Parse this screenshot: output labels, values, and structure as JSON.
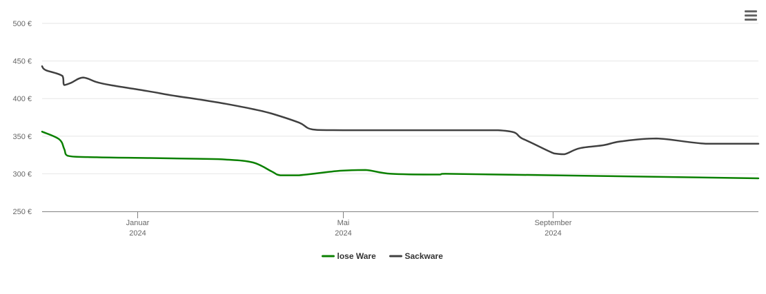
{
  "chart_data": {
    "type": "line",
    "title": "",
    "xlabel": "",
    "ylabel": "",
    "x_range": [
      "2023-11-06",
      "2024-12-31"
    ],
    "ylim": [
      250,
      500
    ],
    "y_ticks": [
      250,
      300,
      350,
      400,
      450,
      500
    ],
    "y_tick_labels": [
      "250 €",
      "300 €",
      "350 €",
      "400 €",
      "450 €",
      "500 €"
    ],
    "x_ticks": [
      {
        "date": "2024-01-01",
        "month": "Januar",
        "year": "2024"
      },
      {
        "date": "2024-05-01",
        "month": "Mai",
        "year": "2024"
      },
      {
        "date": "2024-09-01",
        "month": "September",
        "year": "2024"
      }
    ],
    "grid": "horizontal",
    "legend_position": "bottom-center",
    "series": [
      {
        "name": "lose Ware",
        "color": "#0a8000",
        "points": [
          {
            "x": "2023-11-06",
            "y": 356
          },
          {
            "x": "2023-11-16",
            "y": 346
          },
          {
            "x": "2023-11-19",
            "y": 333
          },
          {
            "x": "2023-11-21",
            "y": 324
          },
          {
            "x": "2023-12-08",
            "y": 322
          },
          {
            "x": "2024-01-07",
            "y": 321
          },
          {
            "x": "2024-02-06",
            "y": 320
          },
          {
            "x": "2024-02-22",
            "y": 319
          },
          {
            "x": "2024-03-09",
            "y": 315
          },
          {
            "x": "2024-03-20",
            "y": 303
          },
          {
            "x": "2024-03-25",
            "y": 298
          },
          {
            "x": "2024-04-05",
            "y": 298
          },
          {
            "x": "2024-04-29",
            "y": 304
          },
          {
            "x": "2024-05-14",
            "y": 305
          },
          {
            "x": "2024-05-29",
            "y": 300
          },
          {
            "x": "2024-06-25",
            "y": 299
          },
          {
            "x": "2024-06-30",
            "y": 300
          },
          {
            "x": "2024-12-31",
            "y": 294
          }
        ]
      },
      {
        "name": "Sackware",
        "color": "#404040",
        "points": [
          {
            "x": "2023-11-06",
            "y": 443
          },
          {
            "x": "2023-11-08",
            "y": 438
          },
          {
            "x": "2023-11-18",
            "y": 430
          },
          {
            "x": "2023-11-19",
            "y": 418
          },
          {
            "x": "2023-11-23",
            "y": 421
          },
          {
            "x": "2023-11-30",
            "y": 428
          },
          {
            "x": "2023-12-08",
            "y": 422
          },
          {
            "x": "2023-12-16",
            "y": 418
          },
          {
            "x": "2024-01-07",
            "y": 410
          },
          {
            "x": "2024-01-22",
            "y": 404
          },
          {
            "x": "2024-02-06",
            "y": 399
          },
          {
            "x": "2024-02-22",
            "y": 393
          },
          {
            "x": "2024-03-09",
            "y": 386
          },
          {
            "x": "2024-03-20",
            "y": 380
          },
          {
            "x": "2024-04-05",
            "y": 368
          },
          {
            "x": "2024-04-13",
            "y": 359
          },
          {
            "x": "2024-05-01",
            "y": 358
          },
          {
            "x": "2024-07-31",
            "y": 358
          },
          {
            "x": "2024-08-15",
            "y": 346
          },
          {
            "x": "2024-09-02",
            "y": 327
          },
          {
            "x": "2024-09-08",
            "y": 326
          },
          {
            "x": "2024-09-17",
            "y": 334
          },
          {
            "x": "2024-10-01",
            "y": 338
          },
          {
            "x": "2024-10-11",
            "y": 343
          },
          {
            "x": "2024-11-01",
            "y": 347
          },
          {
            "x": "2024-11-30",
            "y": 340
          },
          {
            "x": "2024-12-31",
            "y": 340
          }
        ]
      }
    ]
  },
  "ui": {
    "menu_icon": "hamburger-menu-icon",
    "colors": {
      "axis": "#808080",
      "grid": "#e6e6e6",
      "tick_label": "#666666",
      "legend_label": "#333333",
      "menu_icon": "#666666"
    }
  }
}
